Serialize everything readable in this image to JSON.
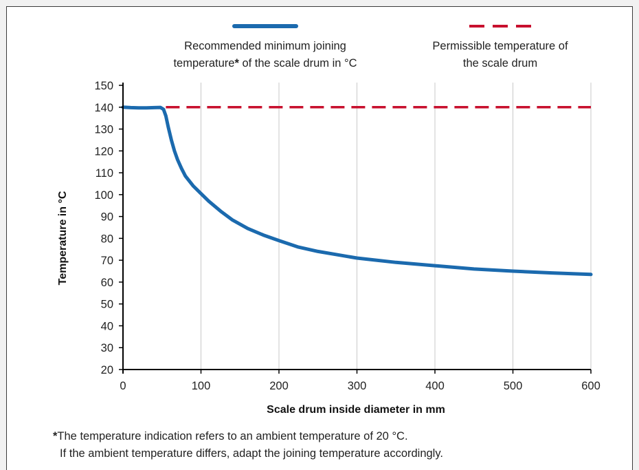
{
  "colors": {
    "recommended": "#1b6aae",
    "permissible": "#c8102e",
    "grid": "#c8c8c8",
    "axis": "#000000",
    "text": "#222222"
  },
  "chart_data": {
    "type": "line",
    "xlabel": "Scale drum inside diameter in mm",
    "ylabel": "Temperature in °C",
    "xlim": [
      0,
      600
    ],
    "ylim": [
      20,
      150
    ],
    "x_ticks": [
      0,
      100,
      200,
      300,
      400,
      500,
      600
    ],
    "y_ticks": [
      20,
      30,
      40,
      50,
      60,
      70,
      80,
      90,
      100,
      110,
      120,
      130,
      140,
      150
    ],
    "grid": "vertical",
    "legend_position": "top",
    "series": [
      {
        "id": "recommended",
        "name": "Recommended minimum joining temperature* of the scale drum in °C",
        "legend_lines": [
          "Recommended minimum joining",
          "temperature",
          "*",
          " of the scale drum in °C"
        ],
        "style": "solid",
        "x": [
          0,
          10,
          20,
          30,
          40,
          48,
          52,
          55,
          58,
          62,
          66,
          70,
          75,
          80,
          90,
          100,
          110,
          125,
          140,
          160,
          180,
          200,
          225,
          250,
          275,
          300,
          350,
          400,
          450,
          500,
          550,
          600
        ],
        "y": [
          140,
          139.8,
          139.7,
          139.7,
          139.8,
          139.9,
          139,
          136,
          131,
          125,
          120,
          116,
          112,
          108.5,
          104,
          100.5,
          97,
          92.5,
          88.5,
          84.5,
          81.5,
          79,
          76,
          74,
          72.5,
          71,
          69,
          67.5,
          66,
          65,
          64.2,
          63.5
        ]
      },
      {
        "id": "permissible",
        "name": "Permissible temperature of the scale drum",
        "legend_lines": [
          "Permissible temperature of",
          "the scale drum"
        ],
        "style": "dashed",
        "x": [
          55,
          600
        ],
        "y": [
          140,
          140
        ]
      }
    ]
  },
  "footnote": {
    "marker": "*",
    "line1": "The temperature indication refers to an ambient temperature of 20 °C.",
    "line2": "If the ambient temperature differs, adapt the joining temperature accordingly."
  }
}
